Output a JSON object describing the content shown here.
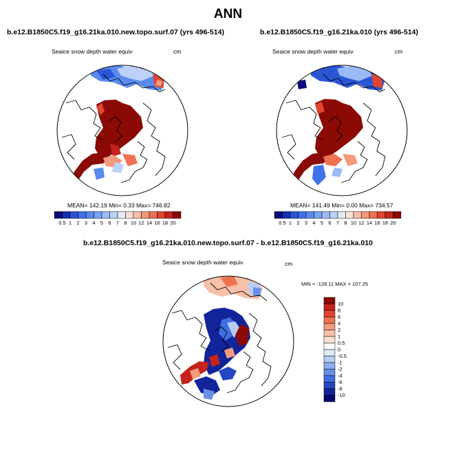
{
  "title": "ANN",
  "chart_data": [
    {
      "type": "heatmap",
      "title": "b.e12.B1850C5.f19_g16.21ka.010.new.topo.surf.07 (yrs 496-514)",
      "variable": "Seaice snow depth water equiv",
      "units": "cm",
      "stats": "MEAN= 142.19  Min=   0.33  Max=  746.82",
      "colorbar_labels": [
        "0.5",
        "1",
        "2",
        "3",
        "4",
        "5",
        "6",
        "7",
        "8",
        "10",
        "12",
        "14",
        "16",
        "18",
        "20"
      ],
      "colors": [
        "#0a0a7a",
        "#1530b0",
        "#2a56d6",
        "#3f72e6",
        "#5a8af0",
        "#7aa2f5",
        "#9bbaf7",
        "#bdd2f8",
        "#e3ecf8",
        "#fbe0d2",
        "#f8c0a8",
        "#f49a7c",
        "#ee7252",
        "#e0452f",
        "#c4241b",
        "#8b0a05"
      ]
    },
    {
      "type": "heatmap",
      "title": "b.e12.B1850C5.f19_g16.21ka.010 (yrs 496-514)",
      "variable": "Seaice snow depth water equiv",
      "units": "cm",
      "stats": "MEAN= 141.49  Min=   0.00  Max=  734.57",
      "colorbar_labels": [
        "0.5",
        "1",
        "2",
        "3",
        "4",
        "5",
        "6",
        "7",
        "8",
        "10",
        "12",
        "14",
        "16",
        "18",
        "20"
      ],
      "colors": [
        "#0a0a7a",
        "#1530b0",
        "#2a56d6",
        "#3f72e6",
        "#5a8af0",
        "#7aa2f5",
        "#9bbaf7",
        "#bdd2f8",
        "#e3ecf8",
        "#fbe0d2",
        "#f8c0a8",
        "#f49a7c",
        "#ee7252",
        "#e0452f",
        "#c4241b",
        "#8b0a05"
      ]
    },
    {
      "type": "heatmap",
      "title": "b.e12.B1850C5.f19_g16.21ka.010.new.topo.surf.07 - b.e12.B1850C5.f19_g16.21ka.010",
      "variable": "Seaice snow depth water equiv",
      "units": "cm",
      "stats": "MIN = -128.11 MAX = 107.25",
      "colorbar_labels": [
        "10",
        "8",
        "6",
        "4",
        "2",
        "1",
        "0.5",
        "0",
        "-0.5",
        "-1",
        "-2",
        "-4",
        "-6",
        "-8",
        "-10"
      ],
      "colors": [
        "#8b0a05",
        "#c4241b",
        "#e0452f",
        "#ee7252",
        "#f49a7c",
        "#f8c0a8",
        "#fbe0d2",
        "#ffffff",
        "#dde8f7",
        "#b7cdf5",
        "#8daef0",
        "#6690ea",
        "#3f6fe0",
        "#2448c4",
        "#12249a",
        "#07076d"
      ]
    }
  ]
}
